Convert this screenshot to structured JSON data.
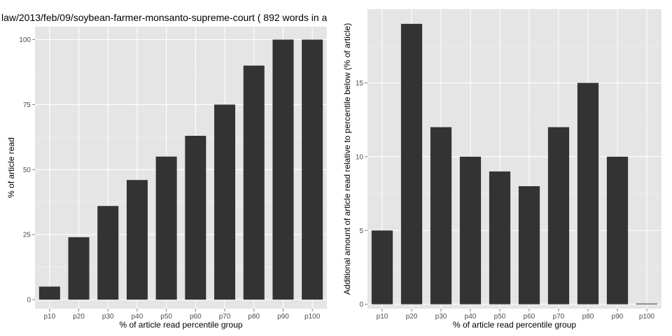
{
  "chart_data": [
    {
      "type": "bar",
      "title": "law/2013/feb/09/soybean-farmer-monsanto-supreme-court ( 892 words in a",
      "xlabel": "% of article read percentile group",
      "ylabel": "% of article read",
      "categories": [
        "p10",
        "p20",
        "p30",
        "p40",
        "p50",
        "p60",
        "p70",
        "p80",
        "p90",
        "p100"
      ],
      "values": [
        5,
        24,
        36,
        46,
        55,
        63,
        75,
        90,
        100,
        100
      ],
      "ylim": [
        -3.5,
        105
      ],
      "yticks": [
        0,
        25,
        50,
        75,
        100
      ],
      "bar_color": "#333333",
      "panel_color": "#e5e5e5",
      "grid": true
    },
    {
      "type": "bar",
      "title": "",
      "xlabel": "% of article read percentile group",
      "ylabel": "Additional amount of article read relative to percentile below (% of article)",
      "categories": [
        "p10",
        "p20",
        "p30",
        "p40",
        "p50",
        "p60",
        "p70",
        "p80",
        "p90",
        "p100"
      ],
      "values": [
        5,
        19,
        12,
        10,
        9,
        8,
        12,
        15,
        10,
        0
      ],
      "ylim": [
        -0.3,
        20
      ],
      "yticks": [
        0,
        5,
        10,
        15
      ],
      "bar_color": "#333333",
      "panel_color": "#e5e5e5",
      "grid": true
    }
  ]
}
